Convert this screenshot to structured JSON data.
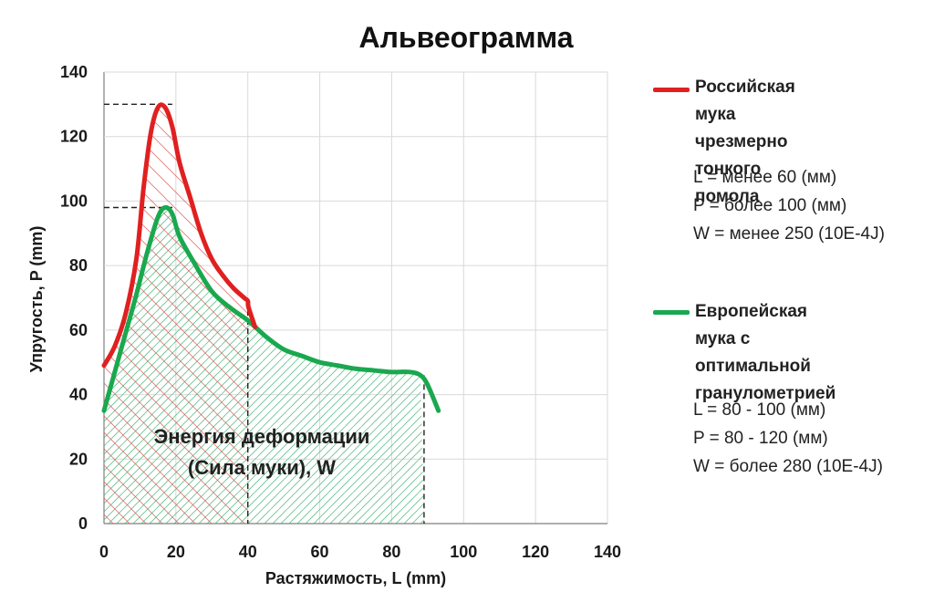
{
  "chart_data": {
    "type": "line",
    "title": "Альвеограмма",
    "xlabel": "Растяжимость, L (mm)",
    "ylabel": "Упругость, P (mm)",
    "xlim": [
      0,
      140
    ],
    "ylim": [
      0,
      140
    ],
    "x_ticks": [
      "0",
      "20",
      "40",
      "60",
      "80",
      "100",
      "120",
      "140"
    ],
    "y_ticks": [
      "0",
      "20",
      "40",
      "60",
      "80",
      "100",
      "120",
      "140"
    ],
    "grid": true,
    "legend_position": "right",
    "series": [
      {
        "name": "Российская мука чрезмерно тонкого помола",
        "name_lines": [
          "Российская мука",
          "чрезмерно тонкого",
          "помола"
        ],
        "color": "#e02020",
        "properties": [
          "L = менее 60 (мм)",
          "P = более 100 (мм)",
          "W = менее 250 (10E-4J)"
        ],
        "x": [
          0,
          3,
          6,
          9,
          11,
          13,
          15,
          17,
          19,
          21,
          24,
          27,
          30,
          33,
          36,
          39,
          40,
          40.2,
          42
        ],
        "y": [
          49,
          55,
          65,
          82,
          104,
          121,
          129,
          129,
          123,
          112,
          101,
          90,
          82,
          77,
          73,
          70,
          69,
          67,
          61
        ]
      },
      {
        "name": "Европейская мука с оптимальной гранулометрией",
        "name_lines": [
          "Европейская мука с",
          "оптимальной",
          "гранулометрией"
        ],
        "color": "#1aa84f",
        "properties": [
          "L = 80 - 100 (мм)",
          "P = 80 - 120 (мм)",
          "W = более 280 (10E-4J)"
        ],
        "x": [
          0,
          3,
          6,
          9,
          12,
          15,
          17,
          19,
          21,
          25,
          30,
          35,
          40,
          45,
          50,
          55,
          60,
          65,
          70,
          75,
          80,
          85,
          88,
          90,
          93
        ],
        "y": [
          35,
          47,
          59,
          71,
          84,
          95,
          98,
          96,
          89,
          81,
          72,
          67,
          63,
          58,
          54,
          52,
          50,
          49,
          48,
          47.5,
          47,
          47,
          46,
          43,
          35
        ]
      }
    ],
    "reference_lines": {
      "red_peak_y": 130,
      "green_peak_y": 98,
      "red_end_x": 40,
      "green_end_x": 89
    },
    "annotation_lines": [
      "Энергия деформации",
      "(Сила муки), W"
    ]
  }
}
